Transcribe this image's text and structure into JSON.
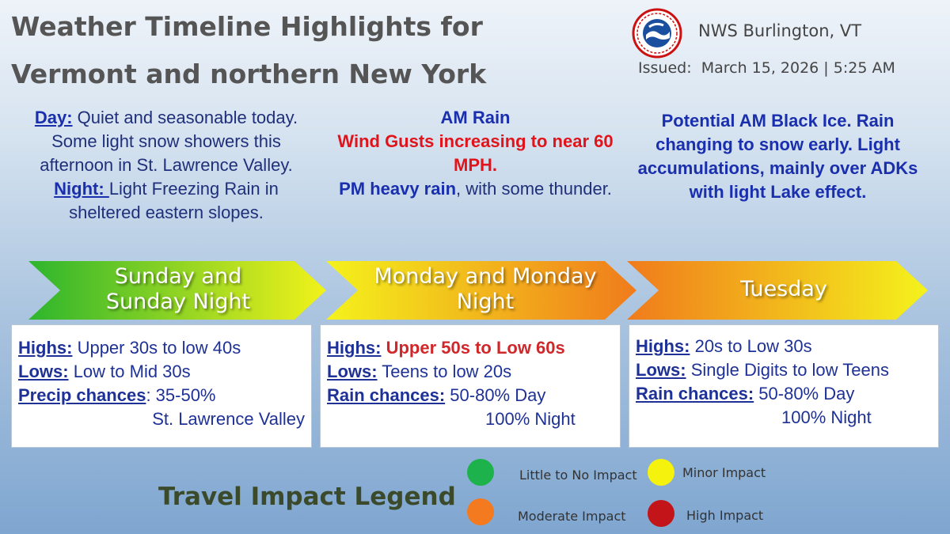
{
  "header": {
    "title_line1": "Weather Timeline Highlights for",
    "title_line2": "Vermont and northern New York",
    "office": "NWS Burlington, VT",
    "issued_label": "Issued:",
    "issued_value": "March 15, 2026 | 5:25 AM",
    "logo_icon": "nws-logo-icon"
  },
  "periods": [
    {
      "name": "Sunday and Sunday Night",
      "name_line1": "Sunday and",
      "name_line2": "Sunday Night",
      "summary": {
        "day_label": "Day:",
        "day_text": " Quiet and seasonable today. Some light snow showers this afternoon in St. Lawrence Valley.",
        "night_label": "Night: ",
        "night_text": "Light Freezing Rain in sheltered eastern slopes."
      },
      "highs_label": "Highs:",
      "highs": "Upper 30s to low 40s",
      "lows_label": "Lows:",
      "lows": "Low to Mid 30s",
      "precip_label": "Precip chances",
      "precip_value": ": 35-50%",
      "precip_note": "St. Lawrence Valley",
      "arrow_colors": [
        "#2db52d",
        "#f2f21a"
      ]
    },
    {
      "name": "Monday and Monday Night",
      "name_line1": "Monday and Monday",
      "name_line2": "Night",
      "summary": {
        "line1": "AM Rain",
        "red_text": "Wind Gusts increasing to near 60 MPH.",
        "pm_bold": "PM heavy rain",
        "pm_rest": ", with some thunder."
      },
      "highs_label": "Highs:",
      "highs": "Upper 50s to Low 60s",
      "lows_label": "Lows:",
      "lows": "Teens to low 20s",
      "precip_label": "Rain chances:",
      "precip_value": " 50-80% Day",
      "precip_note": "100% Night",
      "arrow_colors": [
        "#f4f21c",
        "#f07b1c"
      ]
    },
    {
      "name": "Tuesday",
      "summary": {
        "text": "Potential AM Black Ice. Rain changing to snow early. Light accumulations, mainly over ADKs with light Lake effect."
      },
      "highs_label": "Highs:",
      "highs": "20s to Low 30s",
      "lows_label": "Lows:",
      "lows": "Single Digits to low Teens",
      "precip_label": "Rain chances:",
      "precip_value": " 50-80% Day",
      "precip_note": "100% Night",
      "arrow_colors": [
        "#f07b1c",
        "#f4f21c"
      ]
    }
  ],
  "legend": {
    "title": "Travel Impact Legend",
    "items": [
      {
        "label": "Little to No Impact",
        "color": "#1db24b"
      },
      {
        "label": "Minor Impact",
        "color": "#f5f20d"
      },
      {
        "label": "Moderate Impact",
        "color": "#f37a1f"
      },
      {
        "label": "High Impact",
        "color": "#c3141a"
      }
    ]
  }
}
